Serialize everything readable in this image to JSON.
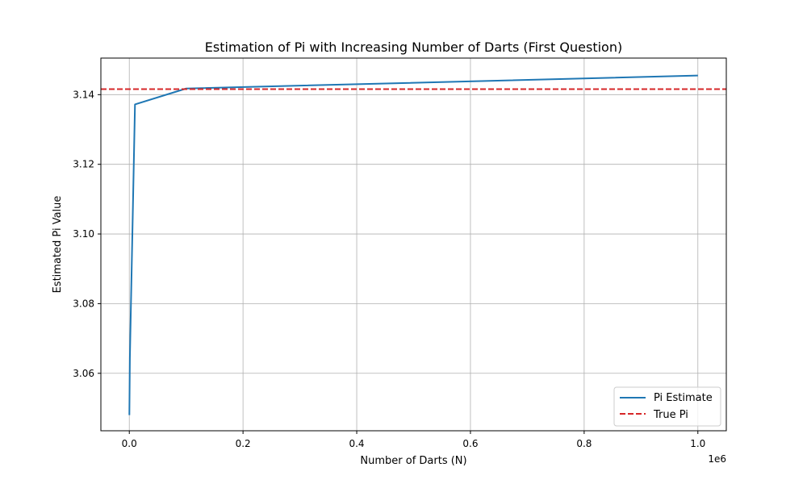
{
  "chart_data": {
    "type": "line",
    "title": "Estimation of Pi with Increasing Number of Darts (First Question)",
    "xlabel": "Number of Darts (N)",
    "ylabel": "Estimated Pi Value",
    "x_offset_label": "1e6",
    "xlim": [
      -50000,
      1050000
    ],
    "ylim": [
      3.0435,
      3.1505
    ],
    "x_ticks": [
      0,
      200000,
      400000,
      600000,
      800000,
      1000000
    ],
    "x_tick_labels": [
      "0.0",
      "0.2",
      "0.4",
      "0.6",
      "0.8",
      "1.0"
    ],
    "y_ticks": [
      3.06,
      3.08,
      3.1,
      3.12,
      3.14
    ],
    "y_tick_labels": [
      "3.06",
      "3.08",
      "3.10",
      "3.12",
      "3.14"
    ],
    "grid": true,
    "legend_position": "lower-right",
    "series": [
      {
        "name": "Pi Estimate",
        "style": "solid",
        "color": "#1f77b4",
        "x": [
          100,
          1000,
          10000,
          100000,
          1000000
        ],
        "y": [
          3.048,
          3.0644,
          3.1372,
          3.14176,
          3.14548
        ]
      },
      {
        "name": "True Pi",
        "style": "dashed",
        "color": "#d62728",
        "y_constant": 3.14159
      }
    ]
  }
}
